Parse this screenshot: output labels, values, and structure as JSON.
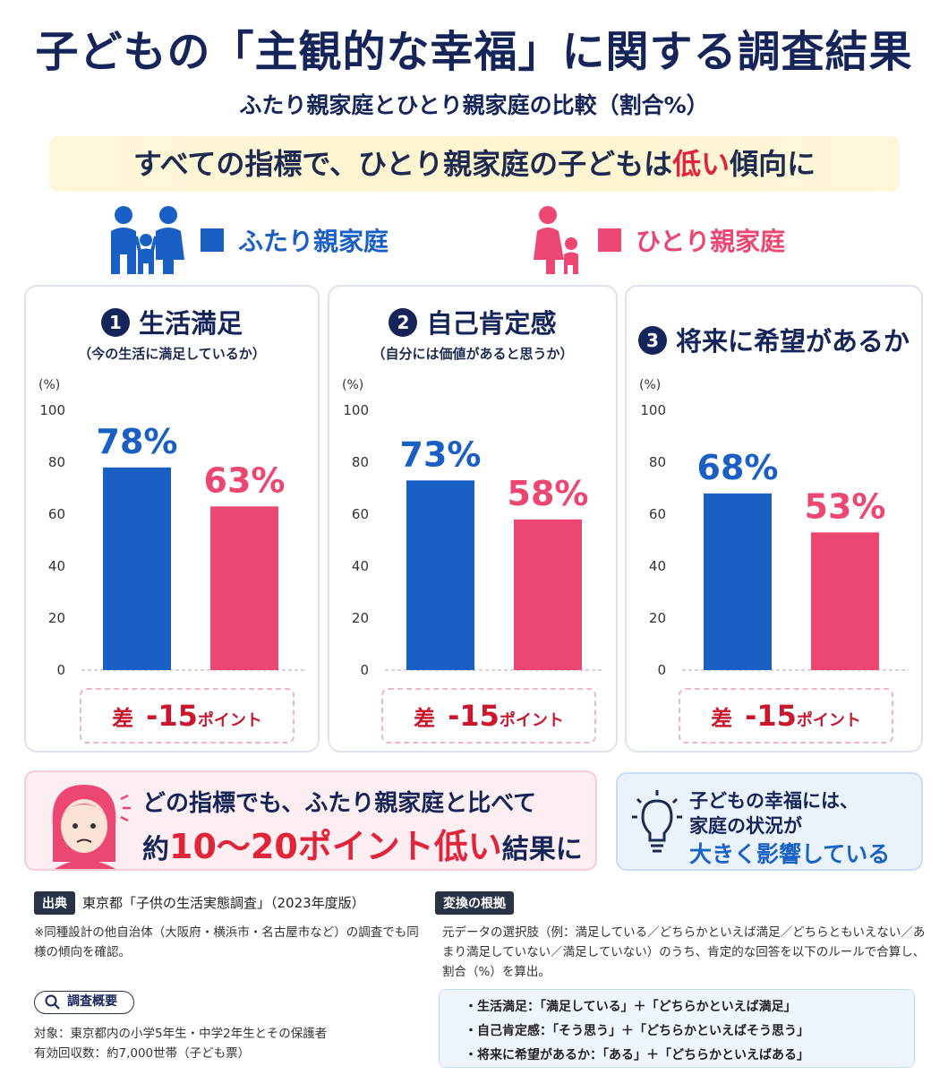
{
  "title": "子どもの「主観的な幸福」に関する調査結果",
  "subtitle": "ふたり親家庭とひとり親家庭の比較（割合%）",
  "banner": {
    "prefix": "すべての指標で、ひとり親家庭の子どもは",
    "highlight": "低い",
    "suffix": "傾向に"
  },
  "legend": [
    {
      "label": "ふたり親家庭",
      "color": "#1a5fc4"
    },
    {
      "label": "ひとり親家庭",
      "color": "#ec4673"
    }
  ],
  "chart_data": [
    {
      "type": "bar",
      "number": "1",
      "title": "生活満足",
      "subtitle": "（今の生活に満足しているか）",
      "ylabel": "(%)",
      "ylim": [
        0,
        100
      ],
      "yticks": [
        "100",
        "80",
        "60",
        "40",
        "20",
        "0"
      ],
      "series": [
        {
          "name": "ふたり親家庭",
          "values": [
            78
          ],
          "label": "78%"
        },
        {
          "name": "ひとり親家庭",
          "values": [
            63
          ],
          "label": "63%"
        }
      ],
      "diff": {
        "prefix": "差",
        "value": "-15",
        "unit": "ポイント"
      }
    },
    {
      "type": "bar",
      "number": "2",
      "title": "自己肯定感",
      "subtitle": "（自分には価値があると思うか）",
      "ylabel": "(%)",
      "ylim": [
        0,
        100
      ],
      "yticks": [
        "100",
        "80",
        "60",
        "40",
        "20",
        "0"
      ],
      "series": [
        {
          "name": "ふたり親家庭",
          "values": [
            73
          ],
          "label": "73%"
        },
        {
          "name": "ひとり親家庭",
          "values": [
            58
          ],
          "label": "58%"
        }
      ],
      "diff": {
        "prefix": "差",
        "value": "-15",
        "unit": "ポイント"
      }
    },
    {
      "type": "bar",
      "number": "3",
      "title": "将来に希望があるか",
      "subtitle": "",
      "ylabel": "(%)",
      "ylim": [
        0,
        100
      ],
      "yticks": [
        "100",
        "80",
        "60",
        "40",
        "20",
        "0"
      ],
      "series": [
        {
          "name": "ふたり親家庭",
          "values": [
            68
          ],
          "label": "68%"
        },
        {
          "name": "ひとり親家庭",
          "values": [
            53
          ],
          "label": "53%"
        }
      ],
      "diff": {
        "prefix": "差",
        "value": "-15",
        "unit": "ポイント"
      }
    }
  ],
  "summary_left": {
    "line1": "どの指標でも、ふたり親家庭と比べて",
    "line2_prefix": "約",
    "line2_highlight": "10～20ポイント低い",
    "line2_suffix": "結果に"
  },
  "summary_right": {
    "line1": "子どもの幸福には、",
    "line2": "家庭の状況が",
    "line3": "大きく影響している"
  },
  "source": {
    "tag": "出典",
    "text": "東京都「子供の生活実態調査」（2023年度版）",
    "note": "※同種設計の他自治体（大阪府・横浜市・名古屋市など）の調査でも同様の傾向を確認。"
  },
  "survey": {
    "tag": "調査概要",
    "target": "対象：東京都内の小学5年生・中学2年生とその保護者",
    "count": "有効回収数：約7,000世帯（子ども票）"
  },
  "basis": {
    "tag": "変換の根拠",
    "text": "元データの選択肢（例：満足している／どちらかといえば満足／どちらともいえない／あまり満足していない／満足していない）のうち、肯定的な回答を以下のルールで合算し、割合（%）を算出。",
    "rules": [
      "・生活満足：「満足している」＋「どちらかといえば満足」",
      "・自己肯定感：「そう思う」＋「どちらかといえばそう思う」",
      "・将来に希望があるか：「ある」＋「どちらかといえばある」"
    ]
  }
}
